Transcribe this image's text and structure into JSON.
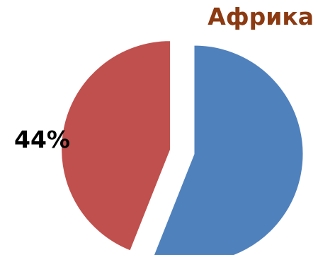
{
  "chart_data": {
    "type": "pie",
    "title": "Африка",
    "slices": [
      {
        "value": 56,
        "label": "",
        "color": "#4f81bd",
        "exploded": false
      },
      {
        "value": 44,
        "label": "44%",
        "color": "#c0504d",
        "exploded": true
      }
    ],
    "legend": "none",
    "title_color": "#8b3a12"
  }
}
